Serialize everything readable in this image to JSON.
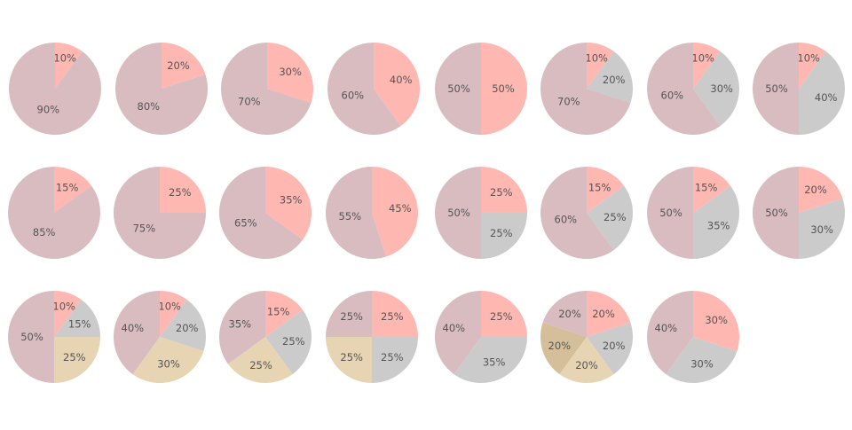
{
  "colors": {
    "rose": "#d9bcc0",
    "pink": "#ffb7b1",
    "gray": "#cbcbcb",
    "sand": "#e6d4b3",
    "tan": "#d4bf9a",
    "label": "#555555"
  },
  "chart_data": [
    {
      "type": "pie",
      "slices": [
        {
          "value": 10,
          "label": "10%",
          "color": "pink"
        },
        {
          "value": 90,
          "label": "90%",
          "color": "rose"
        }
      ]
    },
    {
      "type": "pie",
      "slices": [
        {
          "value": 20,
          "label": "20%",
          "color": "pink"
        },
        {
          "value": 80,
          "label": "80%",
          "color": "rose"
        }
      ]
    },
    {
      "type": "pie",
      "slices": [
        {
          "value": 30,
          "label": "30%",
          "color": "pink"
        },
        {
          "value": 70,
          "label": "70%",
          "color": "rose"
        }
      ]
    },
    {
      "type": "pie",
      "slices": [
        {
          "value": 40,
          "label": "40%",
          "color": "pink"
        },
        {
          "value": 60,
          "label": "60%",
          "color": "rose"
        }
      ]
    },
    {
      "type": "pie",
      "slices": [
        {
          "value": 50,
          "label": "50%",
          "color": "pink"
        },
        {
          "value": 50,
          "label": "50%",
          "color": "rose"
        }
      ]
    },
    {
      "type": "pie",
      "slices": [
        {
          "value": 10,
          "label": "10%",
          "color": "pink"
        },
        {
          "value": 20,
          "label": "20%",
          "color": "gray"
        },
        {
          "value": 70,
          "label": "70%",
          "color": "rose"
        }
      ]
    },
    {
      "type": "pie",
      "slices": [
        {
          "value": 10,
          "label": "10%",
          "color": "pink"
        },
        {
          "value": 30,
          "label": "30%",
          "color": "gray"
        },
        {
          "value": 60,
          "label": "60%",
          "color": "rose"
        }
      ]
    },
    {
      "type": "pie",
      "slices": [
        {
          "value": 10,
          "label": "10%",
          "color": "pink"
        },
        {
          "value": 40,
          "label": "40%",
          "color": "gray"
        },
        {
          "value": 50,
          "label": "50%",
          "color": "rose"
        }
      ]
    },
    {
      "type": "pie",
      "slices": [
        {
          "value": 15,
          "label": "15%",
          "color": "pink"
        },
        {
          "value": 85,
          "label": "85%",
          "color": "rose"
        }
      ]
    },
    {
      "type": "pie",
      "slices": [
        {
          "value": 25,
          "label": "25%",
          "color": "pink"
        },
        {
          "value": 75,
          "label": "75%",
          "color": "rose"
        }
      ]
    },
    {
      "type": "pie",
      "slices": [
        {
          "value": 35,
          "label": "35%",
          "color": "pink"
        },
        {
          "value": 65,
          "label": "65%",
          "color": "rose"
        }
      ]
    },
    {
      "type": "pie",
      "slices": [
        {
          "value": 45,
          "label": "45%",
          "color": "pink"
        },
        {
          "value": 55,
          "label": "55%",
          "color": "rose"
        }
      ]
    },
    {
      "type": "pie",
      "slices": [
        {
          "value": 25,
          "label": "25%",
          "color": "pink"
        },
        {
          "value": 25,
          "label": "25%",
          "color": "gray"
        },
        {
          "value": 50,
          "label": "50%",
          "color": "rose"
        }
      ]
    },
    {
      "type": "pie",
      "slices": [
        {
          "value": 15,
          "label": "15%",
          "color": "pink"
        },
        {
          "value": 25,
          "label": "25%",
          "color": "gray"
        },
        {
          "value": 60,
          "label": "60%",
          "color": "rose"
        }
      ]
    },
    {
      "type": "pie",
      "slices": [
        {
          "value": 15,
          "label": "15%",
          "color": "pink"
        },
        {
          "value": 35,
          "label": "35%",
          "color": "gray"
        },
        {
          "value": 50,
          "label": "50%",
          "color": "rose"
        }
      ]
    },
    {
      "type": "pie",
      "slices": [
        {
          "value": 20,
          "label": "20%",
          "color": "pink"
        },
        {
          "value": 30,
          "label": "30%",
          "color": "gray"
        },
        {
          "value": 50,
          "label": "50%",
          "color": "rose"
        }
      ]
    },
    {
      "type": "pie",
      "slices": [
        {
          "value": 10,
          "label": "10%",
          "color": "pink"
        },
        {
          "value": 15,
          "label": "15%",
          "color": "gray"
        },
        {
          "value": 25,
          "label": "25%",
          "color": "sand"
        },
        {
          "value": 50,
          "label": "50%",
          "color": "rose"
        }
      ]
    },
    {
      "type": "pie",
      "slices": [
        {
          "value": 10,
          "label": "10%",
          "color": "pink"
        },
        {
          "value": 20,
          "label": "20%",
          "color": "gray"
        },
        {
          "value": 30,
          "label": "30%",
          "color": "sand"
        },
        {
          "value": 40,
          "label": "40%",
          "color": "rose"
        }
      ]
    },
    {
      "type": "pie",
      "slices": [
        {
          "value": 15,
          "label": "15%",
          "color": "pink"
        },
        {
          "value": 25,
          "label": "25%",
          "color": "gray"
        },
        {
          "value": 25,
          "label": "25%",
          "color": "sand"
        },
        {
          "value": 35,
          "label": "35%",
          "color": "rose"
        }
      ]
    },
    {
      "type": "pie",
      "slices": [
        {
          "value": 25,
          "label": "25%",
          "color": "pink"
        },
        {
          "value": 25,
          "label": "25%",
          "color": "gray"
        },
        {
          "value": 25,
          "label": "25%",
          "color": "sand"
        },
        {
          "value": 25,
          "label": "25%",
          "color": "rose"
        }
      ]
    },
    {
      "type": "pie",
      "slices": [
        {
          "value": 25,
          "label": "25%",
          "color": "pink"
        },
        {
          "value": 35,
          "label": "35%",
          "color": "gray"
        },
        {
          "value": 40,
          "label": "40%",
          "color": "rose"
        }
      ]
    },
    {
      "type": "pie",
      "slices": [
        {
          "value": 20,
          "label": "20%",
          "color": "pink"
        },
        {
          "value": 20,
          "label": "20%",
          "color": "gray"
        },
        {
          "value": 20,
          "label": "20%",
          "color": "sand"
        },
        {
          "value": 20,
          "label": "20%",
          "color": "tan"
        },
        {
          "value": 20,
          "label": "20%",
          "color": "rose"
        }
      ]
    },
    {
      "type": "pie",
      "slices": [
        {
          "value": 30,
          "label": "30%",
          "color": "pink"
        },
        {
          "value": 30,
          "label": "30%",
          "color": "gray"
        },
        {
          "value": 40,
          "label": "40%",
          "color": "rose"
        }
      ]
    }
  ]
}
